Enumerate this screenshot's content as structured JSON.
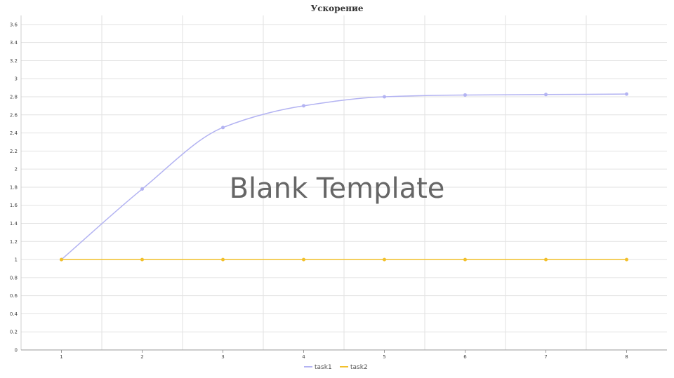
{
  "chart_data": {
    "type": "line",
    "title": "Ускорение",
    "x": [
      1,
      2,
      3,
      4,
      5,
      6,
      7,
      8
    ],
    "series": [
      {
        "name": "task1",
        "color": "#b3b3f2",
        "values": [
          1.0,
          1.78,
          2.46,
          2.7,
          2.8,
          2.82,
          2.825,
          2.83
        ]
      },
      {
        "name": "task2",
        "color": "#f2c02b",
        "values": [
          1,
          1,
          1,
          1,
          1,
          1,
          1,
          1
        ]
      }
    ],
    "xlim": [
      0.5,
      8.5
    ],
    "ylim": [
      0,
      3.7
    ],
    "y_ticks": [
      "0",
      "0.2",
      "0.4",
      "0.6",
      "0.8",
      "1",
      "1.2",
      "1.4",
      "1.6",
      "1.8",
      "2",
      "2.2",
      "2.4",
      "2.6",
      "2.8",
      "3",
      "3.2",
      "3.4",
      "3.6"
    ],
    "x_ticks": [
      "1",
      "2",
      "3",
      "4",
      "5",
      "6",
      "7",
      "8"
    ],
    "grid": true,
    "legend_position": "bottom-center",
    "watermark": "Blank Template"
  }
}
